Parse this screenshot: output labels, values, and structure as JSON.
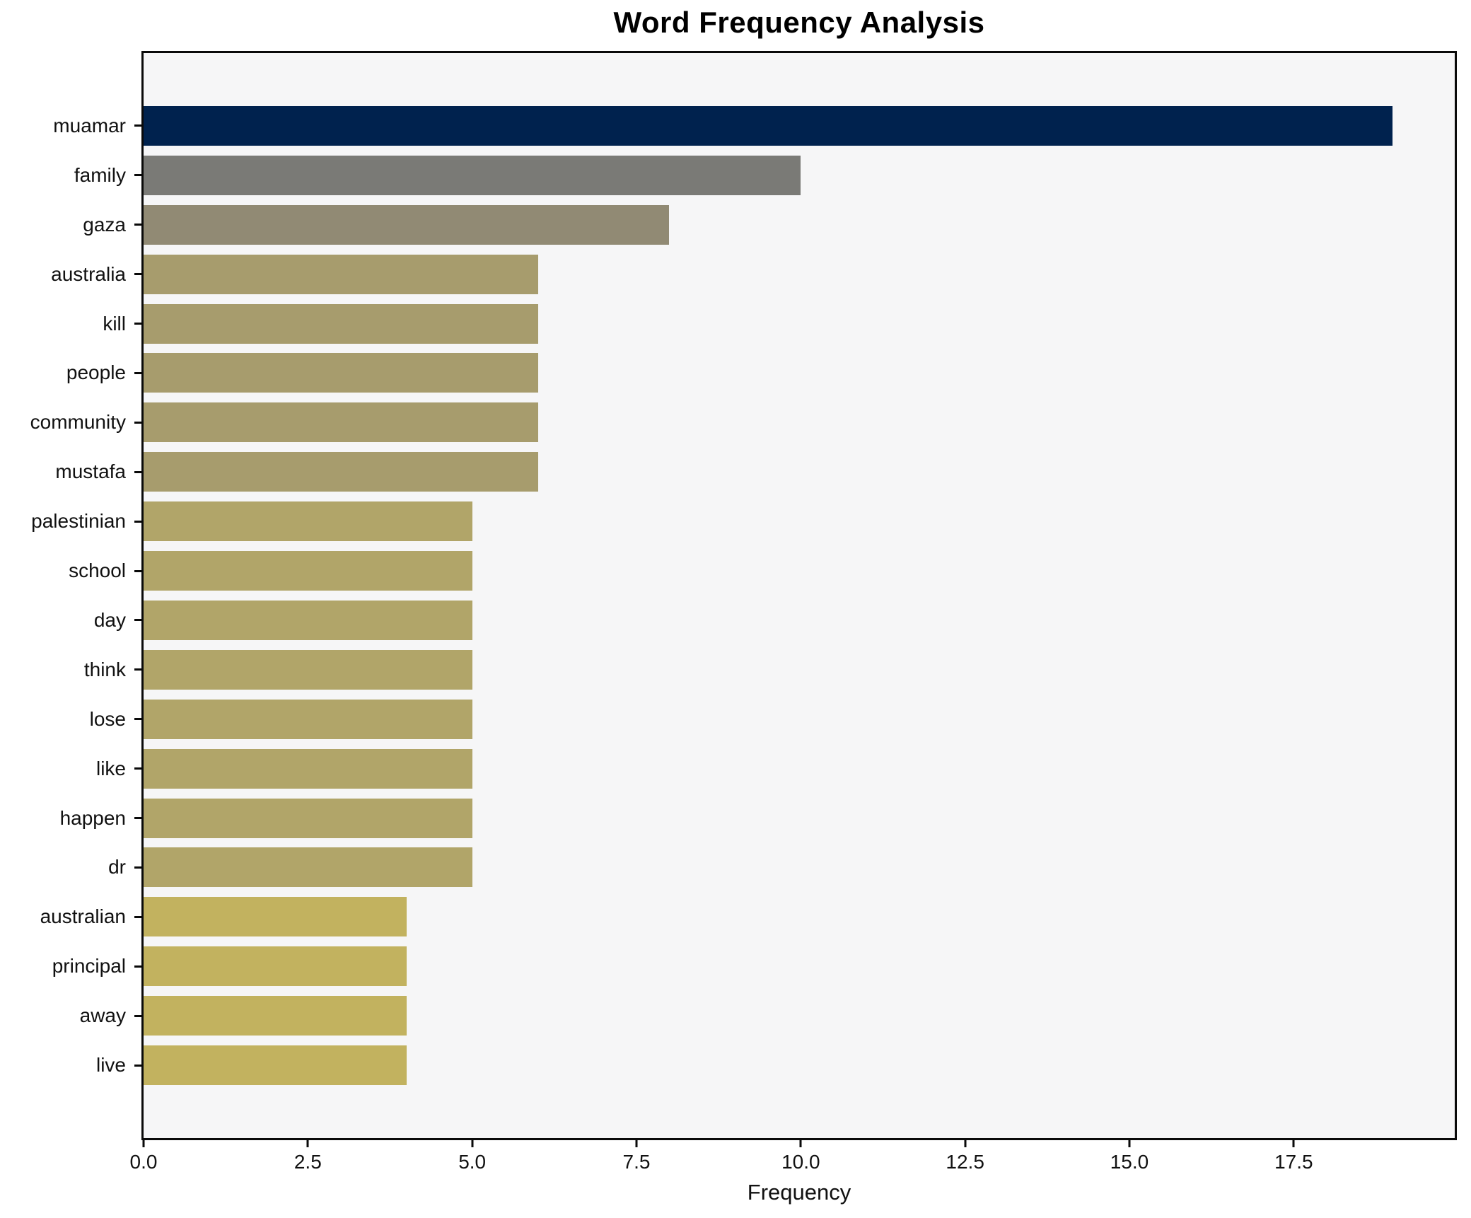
{
  "figure": {
    "title": "Word Frequency Analysis",
    "xlabel": "Frequency",
    "plot_bg": "#f6f6f7",
    "fig_bg": "#ffffff",
    "spine_color": "#0a0a0a"
  },
  "chart_data": {
    "type": "bar",
    "orientation": "horizontal",
    "title": "Word Frequency Analysis",
    "xlabel": "Frequency",
    "ylabel": "",
    "categories": [
      "muamar",
      "family",
      "gaza",
      "australia",
      "kill",
      "people",
      "community",
      "mustafa",
      "palestinian",
      "school",
      "day",
      "think",
      "lose",
      "like",
      "happen",
      "dr",
      "australian",
      "principal",
      "away",
      "live"
    ],
    "values": [
      19,
      10,
      8,
      6,
      6,
      6,
      6,
      6,
      5,
      5,
      5,
      5,
      5,
      5,
      5,
      5,
      4,
      4,
      4,
      4
    ],
    "bar_colors": [
      "#00224e",
      "#7a7a76",
      "#918a74",
      "#a79c6d",
      "#a79c6d",
      "#a79c6d",
      "#a79c6d",
      "#a79c6d",
      "#b1a569",
      "#b1a569",
      "#b1a569",
      "#b1a569",
      "#b1a569",
      "#b1a569",
      "#b1a569",
      "#b1a569",
      "#c2b25f",
      "#c2b25f",
      "#c2b25f",
      "#c2b25f"
    ],
    "xlim": [
      0,
      19.95
    ],
    "xticks": [
      0,
      2.5,
      5,
      7.5,
      10,
      12.5,
      15,
      17.5
    ],
    "xtick_labels": [
      "0.0",
      "2.5",
      "5.0",
      "7.5",
      "10.0",
      "12.5",
      "15.0",
      "17.5"
    ],
    "grid": false,
    "legend": "none"
  }
}
